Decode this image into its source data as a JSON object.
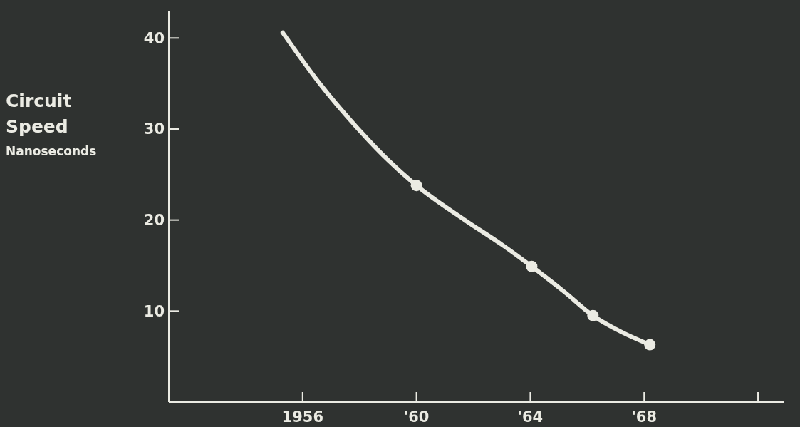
{
  "chart_data": {
    "type": "line",
    "ylabel": "Circuit Speed Nanoseconds",
    "xlim": [
      1951.3,
      1972.9
    ],
    "ylim": [
      0,
      43
    ],
    "xticks": [
      1956,
      {
        "value": 1960,
        "label": "'60"
      },
      {
        "value": 1964,
        "label": "'64"
      },
      {
        "value": 1968,
        "label": "'68"
      },
      {
        "value": 1972,
        "label": null
      }
    ],
    "yticks": [
      10,
      20,
      30,
      40
    ],
    "grid": false,
    "series": [
      {
        "color": "#ebebe3",
        "marker": "none",
        "x": [
          1955.3,
          1956.6,
          1957.9,
          1959.0,
          1960,
          1961.7,
          1963,
          1964.05,
          1965.2,
          1966.2,
          1967.2,
          1968.2
        ],
        "values": [
          40.6,
          35.0,
          30.2,
          26.6,
          23.8,
          20.0,
          17.3,
          14.9,
          12.1,
          9.5,
          7.7,
          6.3
        ]
      },
      {
        "type": "scatter",
        "color": "#ebebe3",
        "marker": "circle",
        "x": [
          1960,
          1964.05,
          1966.2,
          1968.2
        ],
        "values": [
          23.8,
          14.9,
          9.5,
          6.3
        ]
      }
    ]
  }
}
